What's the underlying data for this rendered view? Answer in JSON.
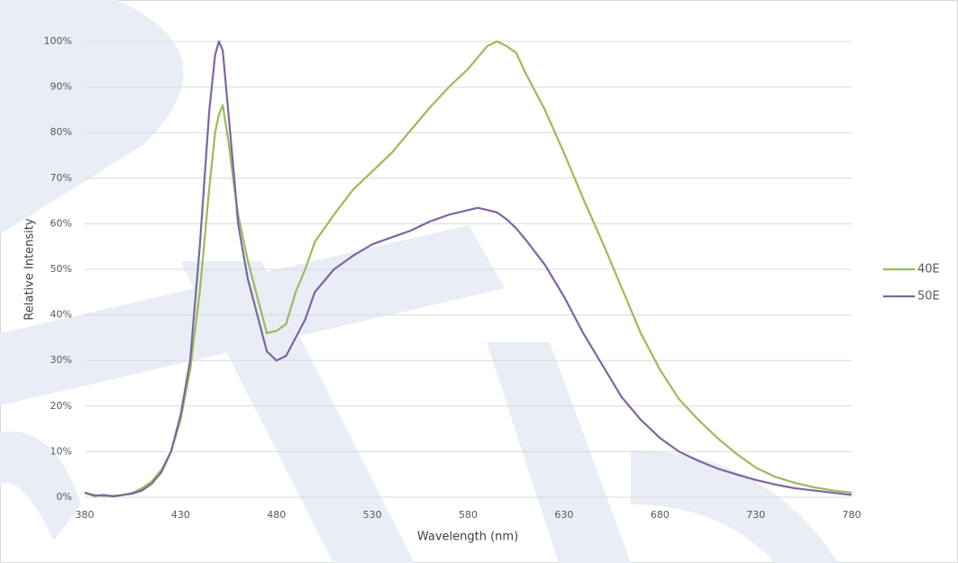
{
  "chart_data": {
    "type": "line",
    "x_label": "Wavelength (nm)",
    "y_label": "Relative Intensity",
    "x": [
      380,
      385,
      390,
      395,
      400,
      405,
      410,
      415,
      420,
      425,
      430,
      435,
      440,
      445,
      448,
      450,
      452,
      455,
      458,
      460,
      465,
      470,
      475,
      480,
      485,
      490,
      495,
      500,
      510,
      520,
      530,
      540,
      550,
      560,
      570,
      580,
      585,
      590,
      595,
      600,
      605,
      610,
      620,
      630,
      640,
      650,
      660,
      670,
      680,
      690,
      700,
      710,
      720,
      730,
      740,
      750,
      760,
      770,
      780
    ],
    "series": [
      {
        "name": "40E",
        "color": "#9bbb59",
        "values": [
          1,
          0.5,
          0.3,
          0.3,
          0.5,
          1,
          2,
          3.5,
          6,
          10,
          17,
          28,
          45,
          68,
          80,
          84,
          86,
          78,
          68,
          62,
          52,
          44,
          36,
          36.5,
          38,
          45,
          50,
          56,
          62,
          67.5,
          71.5,
          75.5,
          80.5,
          85.5,
          90,
          94,
          96.5,
          99,
          100,
          99,
          97.5,
          93,
          85,
          75.5,
          65.5,
          56,
          46,
          36,
          28,
          21.5,
          17,
          13,
          9.5,
          6.5,
          4.5,
          3.2,
          2.2,
          1.5,
          1
        ]
      },
      {
        "name": "50E",
        "color": "#8064a2",
        "values": [
          1,
          0.3,
          0.5,
          0.2,
          0.5,
          0.8,
          1.5,
          3,
          5.5,
          10,
          18,
          30,
          55,
          85,
          97,
          100,
          98,
          84,
          70,
          60,
          48,
          40,
          32,
          30,
          31,
          35,
          39,
          45,
          50,
          53,
          55.5,
          57,
          58.5,
          60.5,
          62,
          63,
          63.5,
          63,
          62.5,
          61,
          59,
          56.5,
          51,
          44,
          36,
          29,
          22,
          17,
          13,
          10,
          8,
          6.3,
          5,
          3.8,
          2.8,
          2,
          1.5,
          1,
          0.5
        ]
      }
    ],
    "xlim": [
      380,
      780
    ],
    "xticks": [
      380,
      430,
      480,
      530,
      580,
      630,
      680,
      730,
      780
    ],
    "ylim": [
      0,
      100
    ],
    "yticks": [
      {
        "value": 0,
        "label": "0%"
      },
      {
        "value": 10,
        "label": "10%"
      },
      {
        "value": 20,
        "label": "20%"
      },
      {
        "value": 30,
        "label": "30%"
      },
      {
        "value": 40,
        "label": "40%"
      },
      {
        "value": 50,
        "label": "50%"
      },
      {
        "value": 60,
        "label": "60%"
      },
      {
        "value": 70,
        "label": "70%"
      },
      {
        "value": 80,
        "label": "80%"
      },
      {
        "value": 90,
        "label": "90%"
      },
      {
        "value": 100,
        "label": "100%"
      }
    ],
    "grid": true,
    "legend": "right"
  }
}
